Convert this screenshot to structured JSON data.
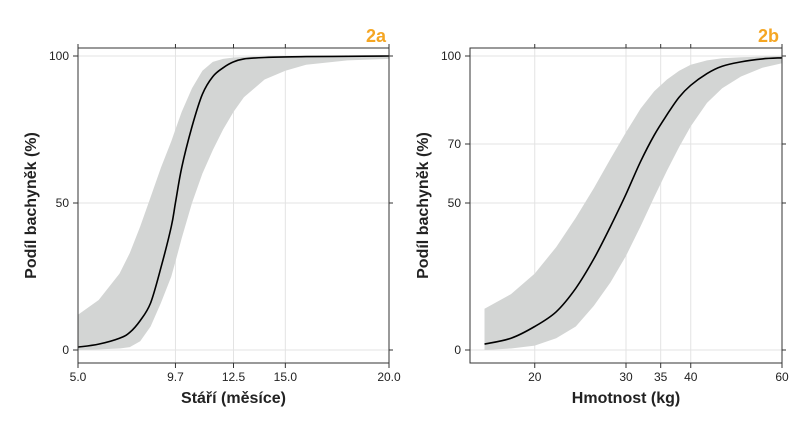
{
  "colors": {
    "panel_tag": "#f5a623",
    "band": "#d3d5d4",
    "curve": "#000000",
    "grid": "#e3e3e3",
    "frame": "#333333"
  },
  "chart_data": [
    {
      "type": "line",
      "panel_label": "2a",
      "xlabel": "Stáří (měsíce)",
      "ylabel": "Podíl bachyněk (%)",
      "xlim": [
        5.0,
        20.0
      ],
      "ylim": [
        0,
        100
      ],
      "xticks": [
        5.0,
        9.7,
        12.5,
        15.0,
        20.0
      ],
      "xtick_labels": [
        "5.0",
        "9.7",
        "12.5",
        "15.0",
        "20.0"
      ],
      "yticks": [
        0,
        50,
        100
      ],
      "ytick_labels": [
        "0",
        "50",
        "100"
      ],
      "grid": true,
      "series": [
        {
          "role": "fitted",
          "x": [
            5.0,
            6.0,
            7.0,
            7.5,
            8.0,
            8.5,
            9.0,
            9.5,
            9.7,
            10.0,
            10.5,
            11.0,
            11.5,
            12.0,
            12.5,
            13.0,
            14.0,
            15.0,
            16.0,
            18.0,
            20.0
          ],
          "y": [
            1,
            2,
            4,
            6,
            10,
            16,
            28,
            42,
            50,
            62,
            76,
            87,
            93,
            96,
            98,
            99,
            99.5,
            99.7,
            99.8,
            99.9,
            100
          ]
        },
        {
          "role": "ci_upper",
          "x": [
            5.0,
            6.0,
            7.0,
            7.5,
            8.0,
            8.5,
            9.0,
            9.5,
            9.7,
            10.0,
            10.5,
            11.0,
            11.5,
            12.0,
            12.5,
            13.0,
            14.0,
            15.0,
            16.0,
            18.0,
            20.0
          ],
          "y": [
            12,
            17,
            26,
            33,
            42,
            52,
            62,
            71,
            75,
            81,
            89,
            95,
            98,
            99,
            99.5,
            99.7,
            99.9,
            100,
            100,
            100,
            100
          ]
        },
        {
          "role": "ci_lower",
          "x": [
            5.0,
            6.0,
            7.0,
            7.5,
            8.0,
            8.5,
            9.0,
            9.5,
            9.7,
            10.0,
            10.5,
            11.0,
            11.5,
            12.0,
            12.5,
            13.0,
            14.0,
            15.0,
            16.0,
            18.0,
            20.0
          ],
          "y": [
            0,
            0.2,
            0.5,
            1,
            3,
            8,
            16,
            25,
            30,
            38,
            50,
            60,
            68,
            75,
            81,
            86,
            92,
            95,
            97,
            98.5,
            99
          ]
        }
      ]
    },
    {
      "type": "line",
      "panel_label": "2b",
      "xlabel": "Hmotnost (kg)",
      "ylabel": "Podíl bachyněk (%)",
      "x_scale": "log",
      "xlim": [
        15,
        60
      ],
      "ylim": [
        0,
        100
      ],
      "y_axis_ticks_uneven": true,
      "xticks": [
        20,
        30,
        35,
        40,
        60
      ],
      "xtick_labels": [
        "20",
        "30",
        "35",
        "40",
        "60"
      ],
      "yticks": [
        0,
        50,
        70,
        100
      ],
      "ytick_labels": [
        "0",
        "50",
        "70",
        "100"
      ],
      "grid": true,
      "series": [
        {
          "role": "fitted",
          "x": [
            16,
            18,
            20,
            22,
            24,
            26,
            28,
            30,
            32,
            34,
            36,
            38,
            40,
            43,
            46,
            50,
            55,
            60
          ],
          "y": [
            2,
            4,
            8,
            13,
            21,
            31,
            42,
            53,
            64,
            73,
            80,
            86,
            90,
            94,
            96.5,
            98,
            99,
            99.4
          ]
        },
        {
          "role": "ci_upper",
          "x": [
            16,
            18,
            20,
            22,
            24,
            26,
            28,
            30,
            32,
            34,
            36,
            38,
            40,
            43,
            46,
            50,
            55,
            60
          ],
          "y": [
            14,
            19,
            26,
            35,
            45,
            55,
            65,
            74,
            82,
            88,
            92,
            95,
            97,
            98.5,
            99.2,
            99.6,
            99.8,
            100
          ]
        },
        {
          "role": "ci_lower",
          "x": [
            16,
            18,
            20,
            22,
            24,
            26,
            28,
            30,
            32,
            34,
            36,
            38,
            40,
            43,
            46,
            50,
            55,
            60
          ],
          "y": [
            0,
            0.5,
            1.5,
            4,
            8,
            15,
            23,
            32,
            42,
            52,
            61,
            69,
            76,
            84,
            89,
            93,
            96,
            97.5
          ]
        }
      ]
    }
  ]
}
